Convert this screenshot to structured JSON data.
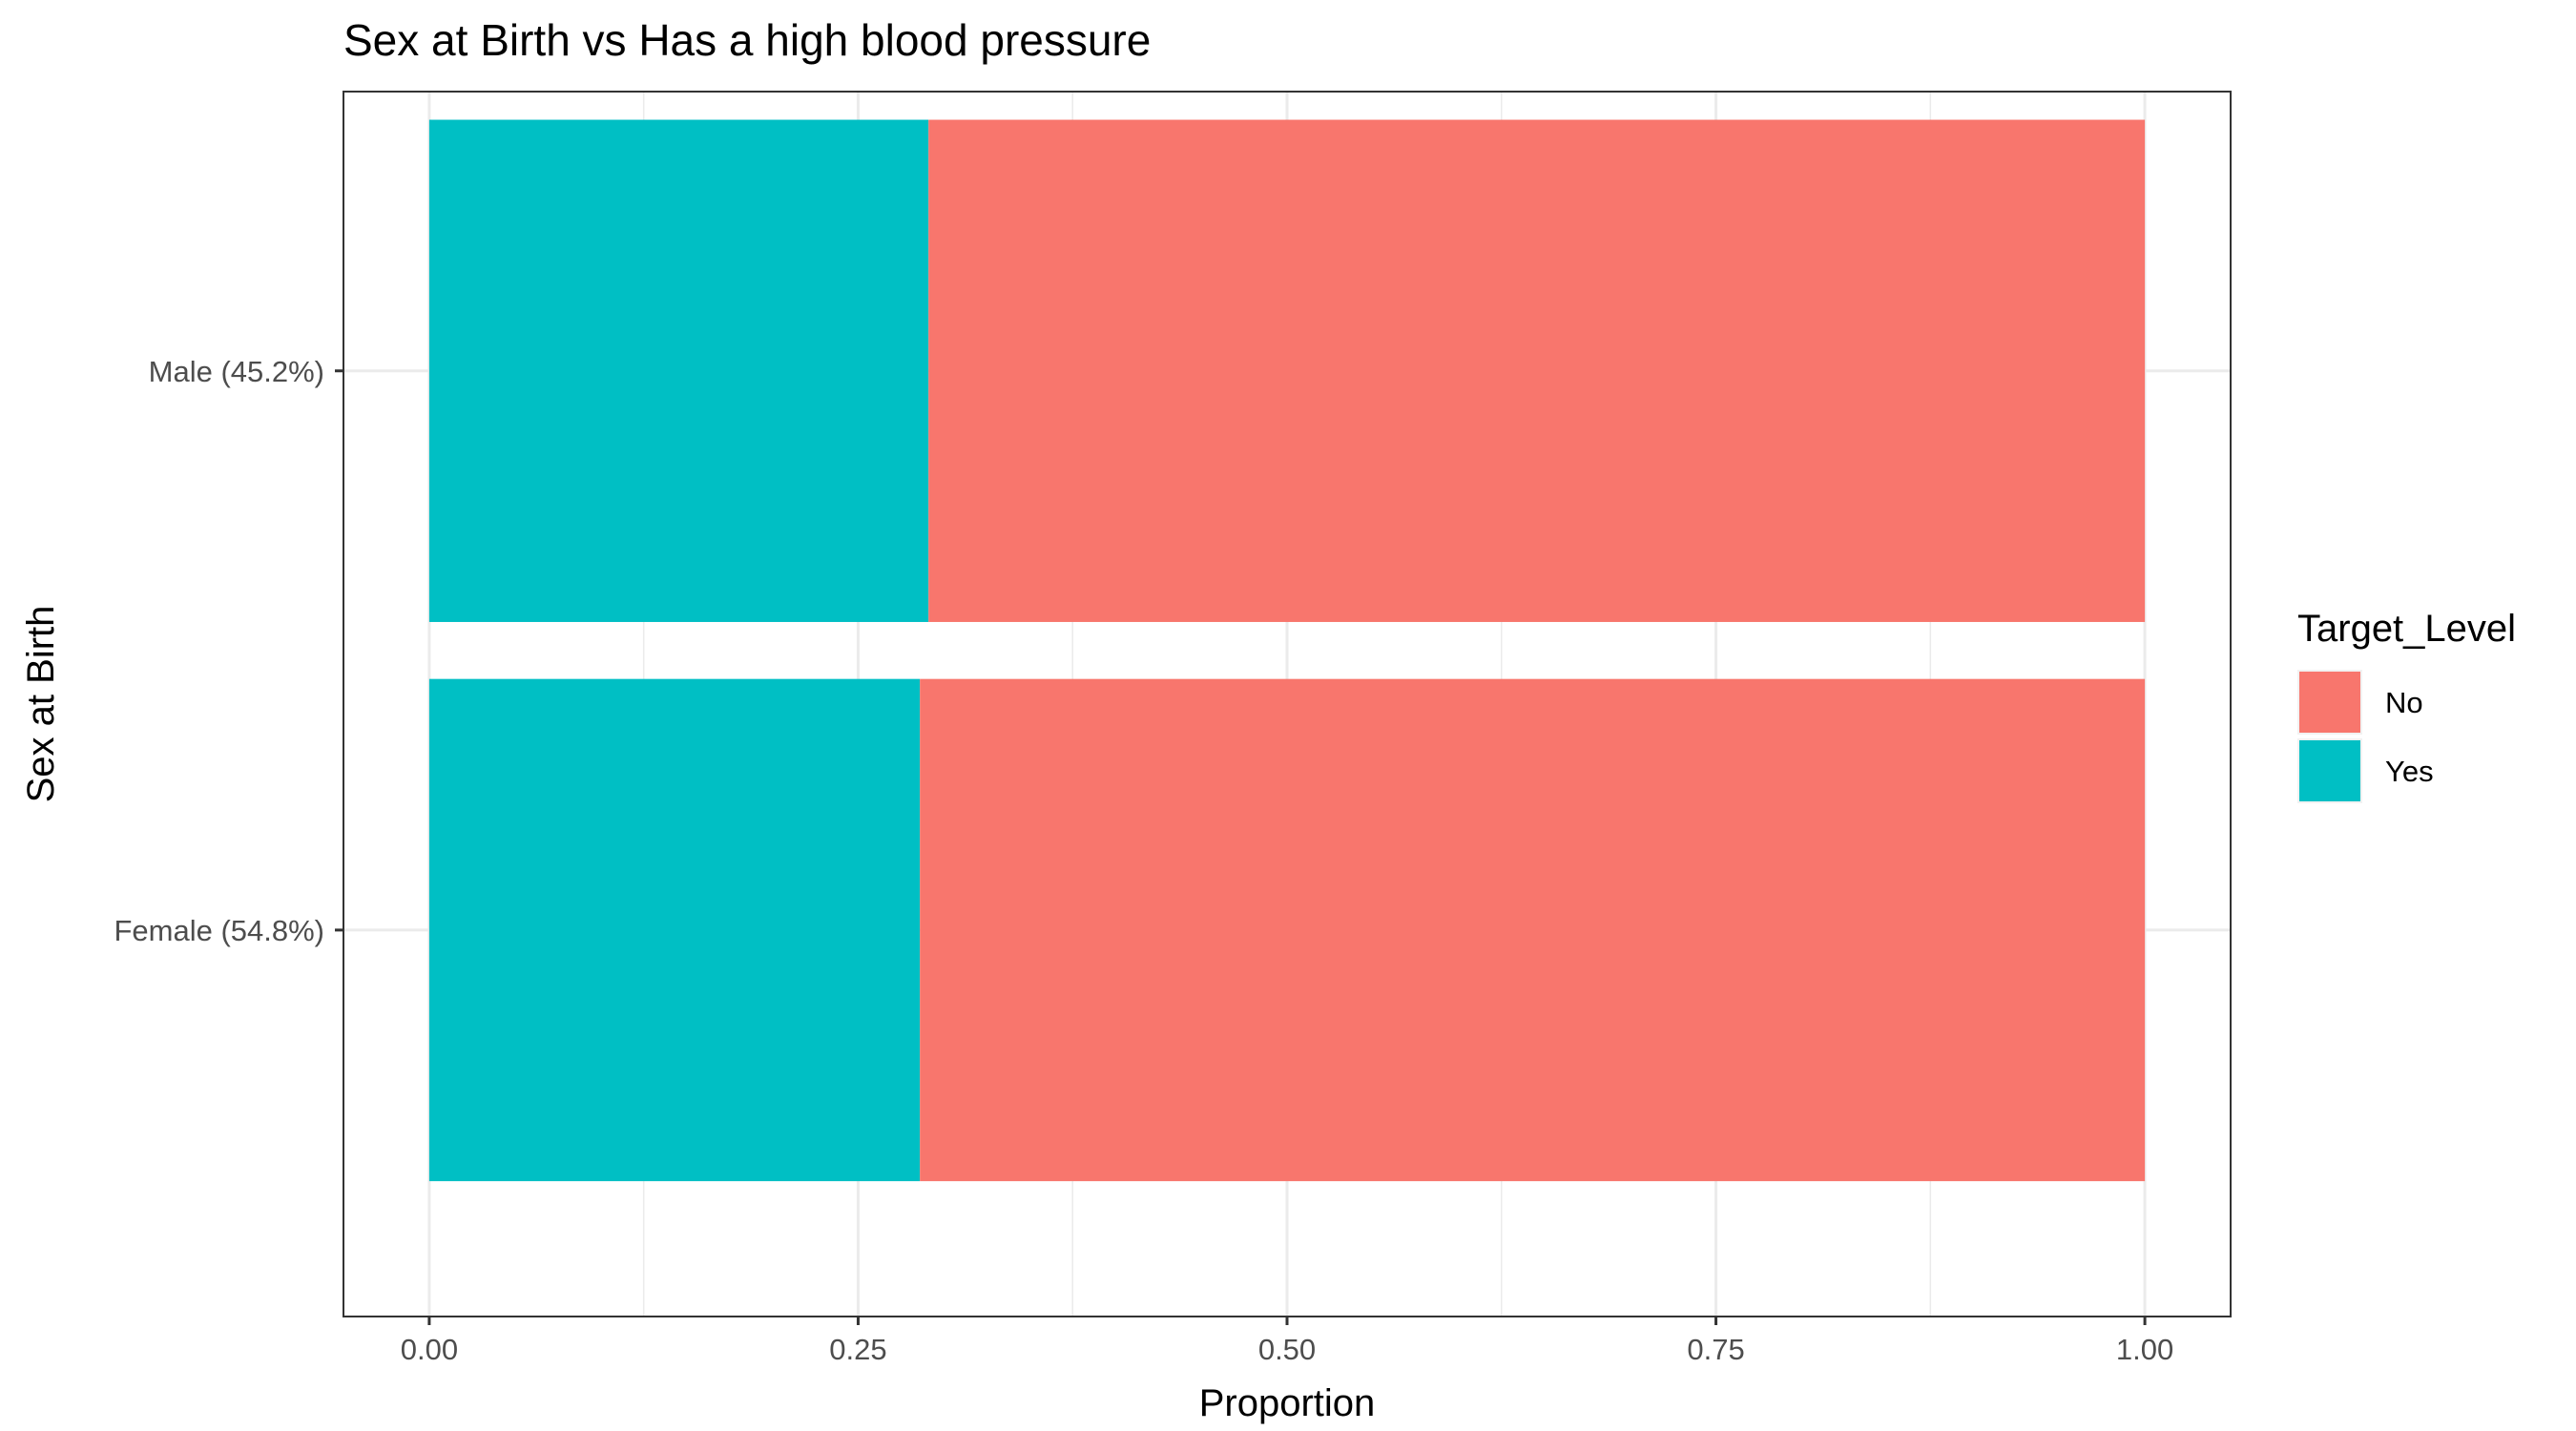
{
  "chart_data": {
    "type": "bar",
    "orientation": "horizontal",
    "stacked": true,
    "title": "Sex at Birth vs Has a high blood pressure",
    "xlabel": "Proportion",
    "ylabel": "Sex at Birth",
    "xlim": [
      0,
      1
    ],
    "x_ticks": [
      "0.00",
      "0.25",
      "0.50",
      "0.75",
      "1.00"
    ],
    "x_tick_values": [
      0,
      0.25,
      0.5,
      0.75,
      1.0
    ],
    "categories": [
      "Male (45.2%)",
      "Female (54.8%)"
    ],
    "series": [
      {
        "name": "Yes",
        "color": "#00BFC4",
        "values": [
          0.291,
          0.286
        ]
      },
      {
        "name": "No",
        "color": "#F8766D",
        "values": [
          0.709,
          0.714
        ]
      }
    ],
    "legend": {
      "title": "Target_Level",
      "position": "right",
      "entries": [
        {
          "label": "No",
          "color": "#F8766D"
        },
        {
          "label": "Yes",
          "color": "#00BFC4"
        }
      ]
    },
    "grid": true,
    "theme": "bw"
  }
}
